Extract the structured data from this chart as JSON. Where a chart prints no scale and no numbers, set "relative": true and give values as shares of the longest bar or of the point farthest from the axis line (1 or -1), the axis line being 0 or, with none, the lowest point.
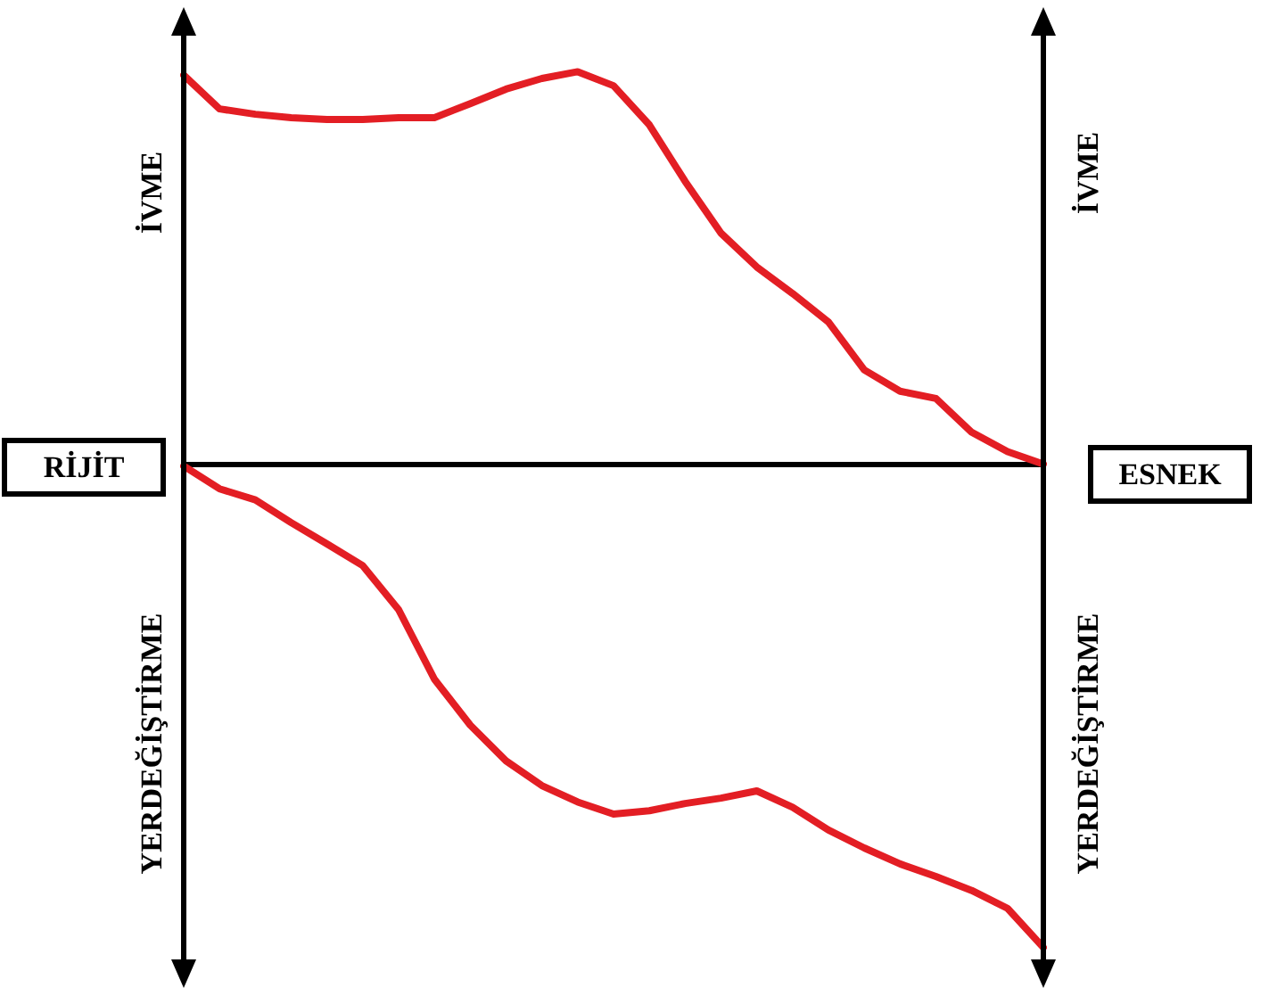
{
  "chart_data": {
    "type": "line",
    "relative": true,
    "categories": [
      null,
      null,
      null,
      null,
      null,
      null,
      null,
      null,
      null,
      null,
      null,
      null,
      null,
      null,
      null,
      null,
      null,
      null,
      null,
      null,
      null,
      null,
      null,
      null,
      null
    ],
    "series": [
      {
        "color": "#e31e24",
        "values": [
          0.805,
          0.735,
          0.724,
          0.717,
          0.713,
          0.713,
          0.717,
          0.717,
          0.746,
          0.776,
          0.798,
          0.812,
          0.783,
          0.702,
          0.585,
          0.478,
          0.408,
          0.353,
          0.294,
          0.195,
          0.151,
          0.136,
          0.066,
          0.026,
          0
        ]
      },
      {
        "color": "#e31e24",
        "values": [
          -0.004,
          -0.051,
          -0.074,
          -0.121,
          -0.165,
          -0.21,
          -0.301,
          -0.445,
          -0.54,
          -0.614,
          -0.665,
          -0.699,
          -0.724,
          -0.717,
          -0.702,
          -0.691,
          -0.676,
          -0.71,
          -0.757,
          -0.794,
          -0.827,
          -0.853,
          -0.882,
          -0.919,
          -1
        ]
      }
    ],
    "annotations": [
      "RİJİT",
      "ESNEK",
      "İVME",
      "YERDEĞİŞTİRME",
      "İVME",
      "YERDEĞİŞTİRME"
    ],
    "grid": false,
    "marker": "none",
    "line_style": "solid"
  }
}
